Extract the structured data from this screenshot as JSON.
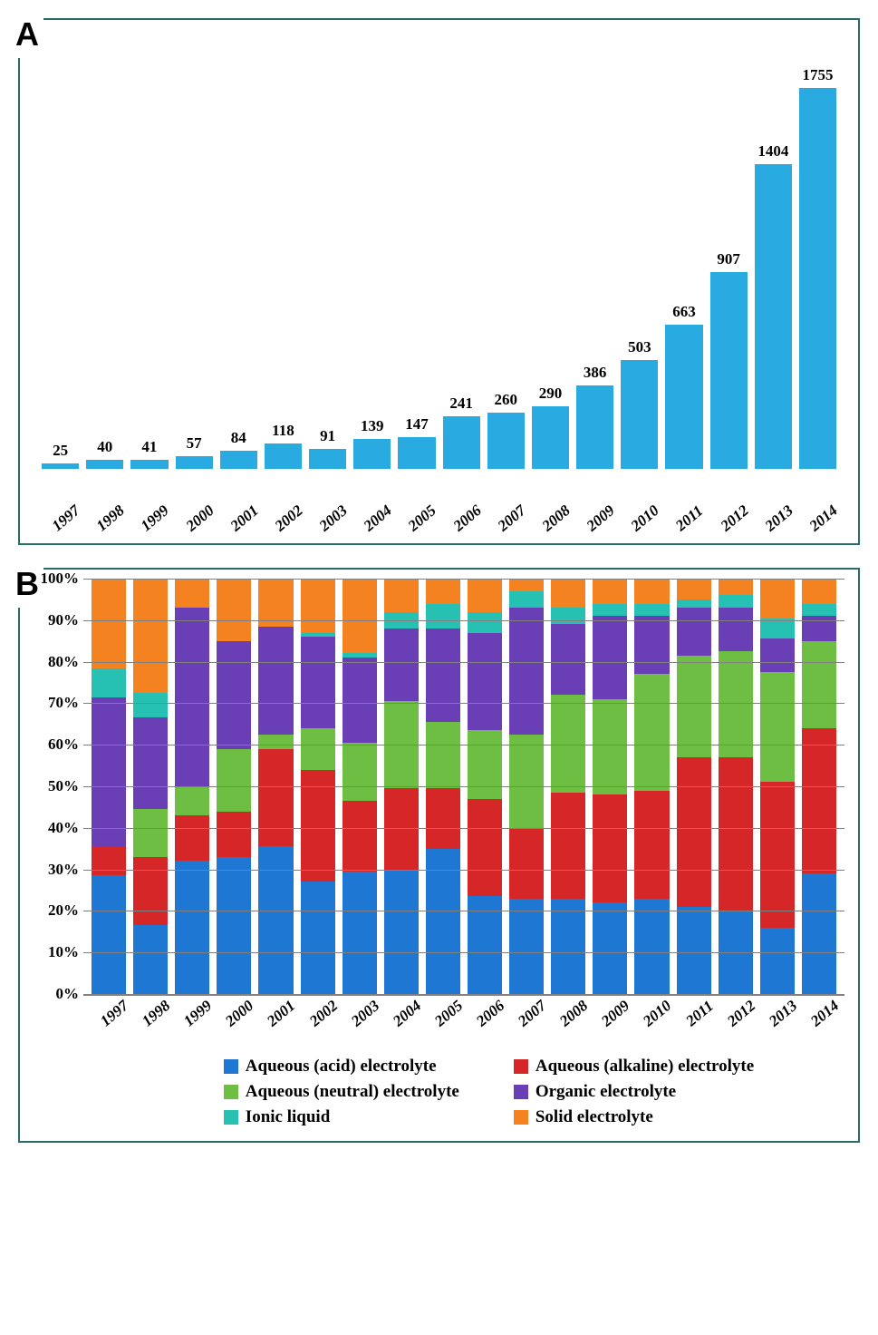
{
  "chartA": {
    "type": "bar",
    "panel_label": "A",
    "years": [
      "1997",
      "1998",
      "1999",
      "2000",
      "2001",
      "2002",
      "2003",
      "2004",
      "2005",
      "2006",
      "2007",
      "2008",
      "2009",
      "2010",
      "2011",
      "2012",
      "2013",
      "2014"
    ],
    "values": [
      25,
      40,
      41,
      57,
      84,
      118,
      91,
      139,
      147,
      241,
      260,
      290,
      386,
      503,
      663,
      907,
      1404,
      1755
    ],
    "bar_color": "#29abe2",
    "label_color": "#000000",
    "label_fontsize": 17,
    "label_fontweight": "bold",
    "xaxis_fontstyle": "italic",
    "ymax_reference": 1755
  },
  "chartB": {
    "type": "stacked-bar-100",
    "panel_label": "B",
    "years": [
      "1997",
      "1998",
      "1999",
      "2000",
      "2001",
      "2002",
      "2003",
      "2004",
      "2005",
      "2006",
      "2007",
      "2008",
      "2009",
      "2010",
      "2011",
      "2012",
      "2013",
      "2014"
    ],
    "yaxis_ticks": [
      0,
      10,
      20,
      30,
      40,
      50,
      60,
      70,
      80,
      90,
      100
    ],
    "yaxis_suffix": "%",
    "grid_color": "#808080",
    "series_order": [
      "acid",
      "alkaline",
      "neutral",
      "organic",
      "ionic",
      "solid"
    ],
    "series": {
      "acid": {
        "label": "Aqueous (acid) electrolyte",
        "color": "#1f77d4"
      },
      "alkaline": {
        "label": "Aqueous (alkaline) electrolyte",
        "color": "#d62728"
      },
      "neutral": {
        "label": "Aqueous (neutral) electrolyte",
        "color": "#6ebe44"
      },
      "organic": {
        "label": "Organic electrolyte",
        "color": "#6a3fb5"
      },
      "ionic": {
        "label": "Ionic liquid",
        "color": "#27c1b4"
      },
      "solid": {
        "label": "Solid electrolyte",
        "color": "#f58220"
      }
    },
    "data": {
      "1997": {
        "acid": 28.5,
        "alkaline": 7.0,
        "neutral": 0.0,
        "organic": 36.0,
        "ionic": 7.0,
        "solid": 21.5
      },
      "1998": {
        "acid": 16.5,
        "alkaline": 16.5,
        "neutral": 11.5,
        "organic": 22.0,
        "ionic": 6.0,
        "solid": 27.5
      },
      "1999": {
        "acid": 32.0,
        "alkaline": 11.0,
        "neutral": 7.0,
        "organic": 43.0,
        "ionic": 0.0,
        "solid": 7.0
      },
      "2000": {
        "acid": 33.0,
        "alkaline": 11.0,
        "neutral": 15.0,
        "organic": 26.0,
        "ionic": 0.0,
        "solid": 15.0
      },
      "2001": {
        "acid": 35.5,
        "alkaline": 23.5,
        "neutral": 3.5,
        "organic": 26.0,
        "ionic": 0.0,
        "solid": 11.5
      },
      "2002": {
        "acid": 27.0,
        "alkaline": 27.0,
        "neutral": 10.0,
        "organic": 22.0,
        "ionic": 1.0,
        "solid": 13.0
      },
      "2003": {
        "acid": 29.5,
        "alkaline": 17.0,
        "neutral": 14.0,
        "organic": 20.5,
        "ionic": 1.0,
        "solid": 18.0
      },
      "2004": {
        "acid": 30.0,
        "alkaline": 19.5,
        "neutral": 21.0,
        "organic": 17.5,
        "ionic": 4.0,
        "solid": 8.0
      },
      "2005": {
        "acid": 35.0,
        "alkaline": 14.5,
        "neutral": 16.0,
        "organic": 22.5,
        "ionic": 6.0,
        "solid": 6.0
      },
      "2006": {
        "acid": 23.5,
        "alkaline": 23.5,
        "neutral": 16.5,
        "organic": 23.5,
        "ionic": 5.0,
        "solid": 8.0
      },
      "2007": {
        "acid": 23.0,
        "alkaline": 17.0,
        "neutral": 22.5,
        "organic": 30.5,
        "ionic": 4.0,
        "solid": 3.0
      },
      "2008": {
        "acid": 23.0,
        "alkaline": 25.5,
        "neutral": 23.5,
        "organic": 17.0,
        "ionic": 4.0,
        "solid": 7.0
      },
      "2009": {
        "acid": 22.0,
        "alkaline": 26.0,
        "neutral": 23.0,
        "organic": 20.0,
        "ionic": 3.0,
        "solid": 6.0
      },
      "2010": {
        "acid": 23.0,
        "alkaline": 26.0,
        "neutral": 28.0,
        "organic": 14.0,
        "ionic": 3.0,
        "solid": 6.0
      },
      "2011": {
        "acid": 21.0,
        "alkaline": 36.0,
        "neutral": 24.5,
        "organic": 11.5,
        "ionic": 2.0,
        "solid": 5.0
      },
      "2012": {
        "acid": 20.0,
        "alkaline": 37.0,
        "neutral": 25.5,
        "organic": 10.5,
        "ionic": 3.0,
        "solid": 4.0
      },
      "2013": {
        "acid": 16.0,
        "alkaline": 35.0,
        "neutral": 26.5,
        "organic": 8.0,
        "ionic": 5.0,
        "solid": 9.5
      },
      "2014": {
        "acid": 29.0,
        "alkaline": 35.0,
        "neutral": 21.0,
        "organic": 6.0,
        "ionic": 3.0,
        "solid": 6.0
      }
    },
    "legend_fontsize": 19,
    "label_fontsize": 17
  }
}
